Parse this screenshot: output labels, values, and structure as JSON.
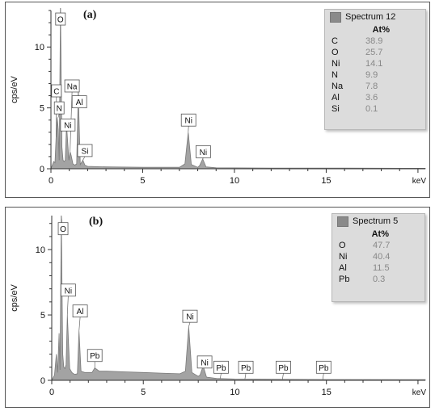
{
  "chart_data": [
    {
      "type": "area",
      "panel_label": "(a)",
      "ylabel": "cps/eV",
      "xunit": "keV",
      "xlim": [
        0,
        20.4
      ],
      "ylim": [
        0,
        13
      ],
      "xticks": [
        0,
        5,
        10,
        15
      ],
      "yticks": [
        0,
        5,
        10
      ],
      "x": [
        0,
        0.15,
        0.22,
        0.28,
        0.35,
        0.4,
        0.45,
        0.52,
        0.6,
        0.66,
        0.72,
        0.78,
        0.85,
        0.92,
        0.98,
        1.04,
        1.1,
        1.2,
        1.3,
        1.4,
        1.49,
        1.6,
        1.74,
        1.85,
        2.0,
        3.0,
        5.0,
        7.0,
        7.3,
        7.48,
        7.65,
        8.0,
        8.1,
        8.27,
        8.45,
        9.0,
        12.0,
        16.0,
        20.4
      ],
      "y": [
        0,
        0.6,
        0.5,
        2.6,
        4.2,
        3.2,
        0.7,
        13.2,
        1.8,
        0.7,
        0.6,
        0.7,
        3.6,
        2.0,
        0.7,
        1.4,
        1.1,
        0.4,
        0.3,
        0.4,
        6.3,
        0.35,
        0.7,
        0.3,
        0.2,
        0.15,
        0.12,
        0.12,
        0.4,
        3.0,
        0.35,
        0.12,
        0.25,
        0.8,
        0.15,
        0.08,
        0.06,
        0.05,
        0.04
      ],
      "peak_labels": [
        {
          "text": "O",
          "x": 0.52,
          "y": 13.2,
          "lx": 0.52,
          "ly": 12.3
        },
        {
          "text": "C",
          "x": 0.28,
          "y": 2.6,
          "lx": 0.3,
          "ly": 6.4
        },
        {
          "text": "N",
          "x": 0.39,
          "y": 4.2,
          "lx": 0.45,
          "ly": 5.0
        },
        {
          "text": "Na",
          "x": 1.04,
          "y": 1.4,
          "lx": 1.15,
          "ly": 6.8
        },
        {
          "text": "Ni",
          "x": 0.85,
          "y": 3.6,
          "lx": 0.92,
          "ly": 3.6
        },
        {
          "text": "Al",
          "x": 1.49,
          "y": 6.3,
          "lx": 1.55,
          "ly": 5.5
        },
        {
          "text": "Si",
          "x": 1.74,
          "y": 0.7,
          "lx": 1.85,
          "ly": 1.5
        },
        {
          "text": "Ni",
          "x": 7.48,
          "y": 3.0,
          "lx": 7.5,
          "ly": 4.0
        },
        {
          "text": "Ni",
          "x": 8.27,
          "y": 0.8,
          "lx": 8.3,
          "ly": 1.4
        }
      ],
      "legend": {
        "title": "Spectrum 12",
        "column": "At%",
        "rows": [
          {
            "el": "C",
            "val": "38.9"
          },
          {
            "el": "O",
            "val": "25.7"
          },
          {
            "el": "Ni",
            "val": "14.1"
          },
          {
            "el": "N",
            "val": "9.9"
          },
          {
            "el": "Na",
            "val": "7.8"
          },
          {
            "el": "Al",
            "val": "3.6"
          },
          {
            "el": "Si",
            "val": "0.1"
          }
        ]
      }
    },
    {
      "type": "area",
      "panel_label": "(b)",
      "ylabel": "cps/eV",
      "xunit": "keV",
      "xlim": [
        0,
        20.4
      ],
      "ylim": [
        0,
        12.6
      ],
      "xticks": [
        0,
        5,
        10,
        15
      ],
      "yticks": [
        0,
        5,
        10
      ],
      "x": [
        0,
        0.15,
        0.25,
        0.32,
        0.4,
        0.45,
        0.52,
        0.6,
        0.66,
        0.72,
        0.78,
        0.85,
        0.92,
        0.98,
        1.1,
        1.25,
        1.4,
        1.49,
        1.6,
        1.8,
        2.2,
        2.35,
        2.6,
        3.0,
        4.0,
        5.0,
        6.0,
        7.0,
        7.3,
        7.48,
        7.65,
        8.0,
        8.1,
        8.27,
        8.45,
        9.0,
        10.0,
        12.0,
        15.0,
        20.4
      ],
      "y": [
        0,
        0.4,
        2.0,
        0.6,
        3.6,
        0.8,
        12.6,
        2.0,
        1.0,
        0.9,
        1.2,
        5.0,
        2.8,
        0.9,
        0.6,
        0.45,
        0.5,
        3.8,
        0.7,
        0.6,
        0.6,
        0.95,
        0.7,
        0.7,
        0.65,
        0.6,
        0.55,
        0.5,
        0.7,
        4.1,
        0.6,
        0.3,
        0.4,
        1.1,
        0.25,
        0.15,
        0.1,
        0.08,
        0.06,
        0.05
      ],
      "peak_labels": [
        {
          "text": "O",
          "x": 0.52,
          "y": 12.6,
          "lx": 0.62,
          "ly": 11.6
        },
        {
          "text": "Ni",
          "x": 0.85,
          "y": 5.0,
          "lx": 0.9,
          "ly": 6.9
        },
        {
          "text": "Al",
          "x": 1.49,
          "y": 3.8,
          "lx": 1.55,
          "ly": 5.3
        },
        {
          "text": "Pb",
          "x": 2.35,
          "y": 0.95,
          "lx": 2.35,
          "ly": 1.9
        },
        {
          "text": "Ni",
          "x": 7.48,
          "y": 4.1,
          "lx": 7.55,
          "ly": 4.9
        },
        {
          "text": "Ni",
          "x": 8.27,
          "y": 1.1,
          "lx": 8.35,
          "ly": 1.4
        },
        {
          "text": "Pb",
          "x": 9.2,
          "y": 0.15,
          "lx": 9.25,
          "ly": 1.0
        },
        {
          "text": "Pb",
          "x": 10.55,
          "y": 0.1,
          "lx": 10.6,
          "ly": 1.0
        },
        {
          "text": "Pb",
          "x": 12.6,
          "y": 0.08,
          "lx": 12.65,
          "ly": 1.0
        },
        {
          "text": "Pb",
          "x": 14.8,
          "y": 0.06,
          "lx": 14.85,
          "ly": 1.0
        }
      ],
      "legend": {
        "title": "Spectrum 5",
        "column": "At%",
        "rows": [
          {
            "el": "O",
            "val": "47.7"
          },
          {
            "el": "Ni",
            "val": "40.4"
          },
          {
            "el": "Al",
            "val": "11.5"
          },
          {
            "el": "Pb",
            "val": "0.3"
          }
        ]
      }
    }
  ],
  "colors": {
    "fill": "#a3a3a3",
    "outline": "#7a7a7a",
    "axis": "#333333",
    "legend_bg": "#dcdcdc"
  }
}
